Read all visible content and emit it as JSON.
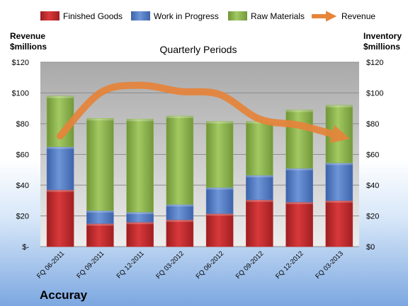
{
  "company": "Accuray",
  "colors": {
    "finished": "#c0282a",
    "wip": "#4f7ac4",
    "raw": "#8db64a",
    "revenue": "#e6843a",
    "plot_bg_top": "#a9a9a9",
    "plot_bg_bottom": "#ececec"
  },
  "chart_data": {
    "type": "bar",
    "stacked": true,
    "title": "Quarterly Periods",
    "left_axis_title": [
      "Revenue",
      "$millions"
    ],
    "right_axis_title": [
      "Inventory",
      "$millions"
    ],
    "categories": [
      "FQ 06-2011",
      "FQ 09-2011",
      "FQ 12-2011",
      "FQ 03-2012",
      "FQ 06-2012",
      "FQ 09-2012",
      "FQ 12-2012",
      "FQ 03-2013"
    ],
    "y_ticks_left": [
      "$-",
      "$20",
      "$40",
      "$60",
      "$80",
      "$100",
      "$120"
    ],
    "y_ticks_right": [
      "$0",
      "$20",
      "$40",
      "$60",
      "$80",
      "$100",
      "$120"
    ],
    "ylim": [
      0,
      120
    ],
    "grid": true,
    "legend_position": "top",
    "series": [
      {
        "name": "Finished Goods",
        "color_key": "finished",
        "values": [
          37,
          15,
          16,
          17.5,
          21.5,
          30.5,
          29,
          30
        ]
      },
      {
        "name": "Work in Progress",
        "color_key": "wip",
        "values": [
          28,
          8.5,
          6.5,
          10,
          17,
          16,
          22,
          24.5
        ]
      },
      {
        "name": "Raw Materials",
        "color_key": "raw",
        "values": [
          33,
          60,
          60.5,
          57.5,
          43,
          35,
          38,
          37.5
        ]
      }
    ],
    "line_series": {
      "name": "Revenue",
      "color_key": "revenue",
      "values": [
        72,
        100,
        105,
        101,
        99,
        83,
        79,
        72
      ]
    }
  }
}
